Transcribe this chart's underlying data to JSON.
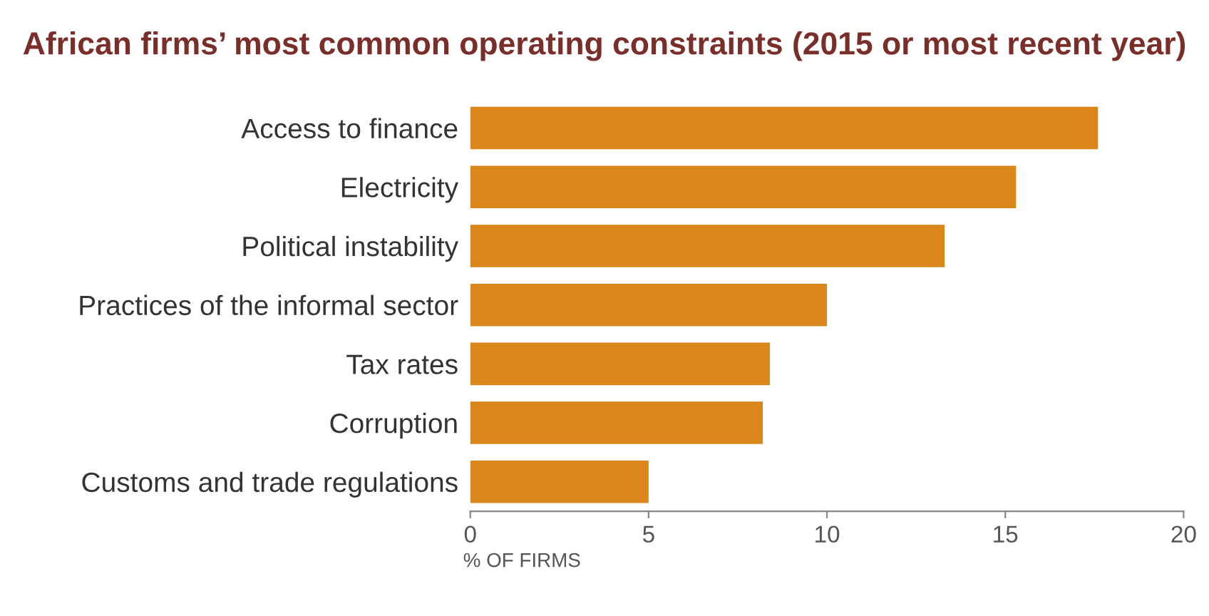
{
  "chart_data": {
    "type": "bar",
    "orientation": "horizontal",
    "title": "African firms’ most common operating constraints (2015 or most recent year)",
    "categories": [
      "Access to finance",
      "Electricity",
      "Political instability",
      "Practices of the informal sector",
      "Tax rates",
      "Corruption",
      "Customs and trade regulations"
    ],
    "values": [
      17.6,
      15.3,
      13.3,
      10.0,
      8.4,
      8.2,
      5.0
    ],
    "color": "#d9861a",
    "xlim": [
      0,
      20
    ],
    "xticks": [
      0,
      5,
      10,
      15,
      20
    ],
    "xlabel": "% OF FIRMS",
    "grid": false,
    "legend": false
  }
}
